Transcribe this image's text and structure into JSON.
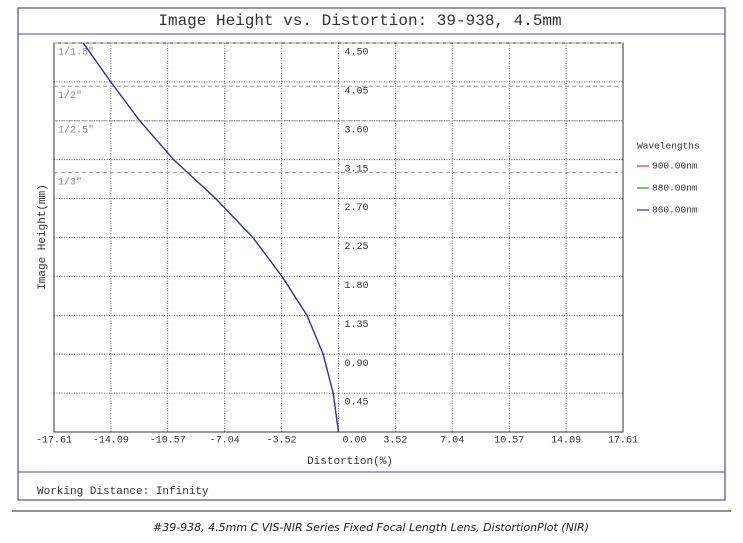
{
  "chart_data": {
    "type": "line",
    "title": "Image Height vs. Distortion: 39-938, 4.5mm",
    "x_label": "Distortion(%)",
    "y_label": "Image Height(mm)",
    "x": [
      0,
      -0.33,
      -0.95,
      -1.95,
      -3.5,
      -5.3,
      -7.6,
      -10.2,
      -12.3,
      -14.1,
      -15.8
    ],
    "series": [
      {
        "name": "900.00nm",
        "color": "#e8312f",
        "values": [
          0,
          0.45,
          0.9,
          1.35,
          1.8,
          2.25,
          2.7,
          3.15,
          3.6,
          4.05,
          4.5
        ]
      },
      {
        "name": "880.00nm",
        "color": "#2e8b3a",
        "values": [
          0,
          0.45,
          0.9,
          1.35,
          1.8,
          2.25,
          2.7,
          3.15,
          3.6,
          4.05,
          4.5
        ]
      },
      {
        "name": "860.00nm",
        "color": "#2b2bd0",
        "values": [
          0,
          0.45,
          0.9,
          1.35,
          1.8,
          2.25,
          2.7,
          3.15,
          3.6,
          4.05,
          4.5
        ]
      }
    ],
    "legend_title": "Wavelengths",
    "xlim": [
      -17.61,
      17.61
    ],
    "xticks": [
      -17.61,
      -14.09,
      -10.57,
      -7.04,
      -3.52,
      {
        "value": 0,
        "label": "0.00"
      },
      3.52,
      7.04,
      10.57,
      14.09,
      17.61
    ],
    "ylim": [
      0,
      4.5
    ],
    "yticks": [
      0.45,
      {
        "value": 0.9,
        "label": "0.90"
      },
      1.35,
      {
        "value": 1.8,
        "label": "1.80"
      },
      2.25,
      {
        "value": 2.7,
        "label": "2.70"
      },
      3.15,
      {
        "value": 3.6,
        "label": "3.60"
      },
      4.05,
      {
        "value": 4.5,
        "label": "4.50"
      }
    ],
    "grid": true,
    "sensor_lines": [
      {
        "label": "1/1.8\"",
        "value": 4.5
      },
      {
        "label": "1/2\"",
        "value": 4.0
      },
      {
        "label": "1/2.5\"",
        "value": 3.6
      },
      {
        "label": "1/3\"",
        "value": 3.0
      }
    ],
    "footer": "Working Distance: Infinity",
    "caption": "#39-938, 4.5mm C VIS-NIR Series Fixed Focal Length Lens, DistortionPlot (NIR)"
  }
}
